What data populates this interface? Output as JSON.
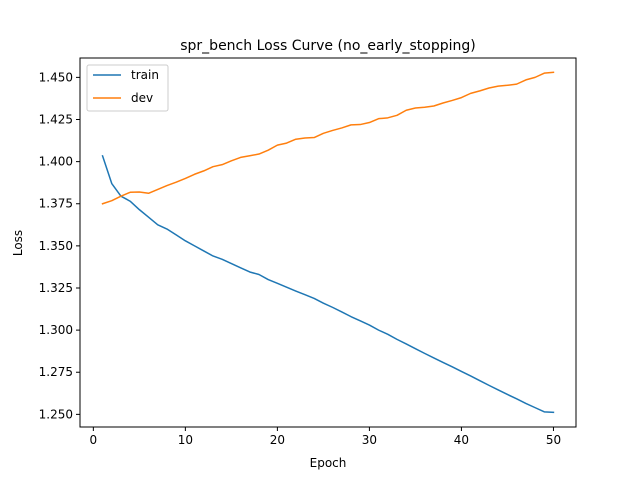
{
  "chart_data": {
    "type": "line",
    "title": "spr_bench Loss Curve (no_early_stopping)",
    "xlabel": "Epoch",
    "ylabel": "Loss",
    "xlim": [
      -1.45,
      52.45
    ],
    "ylim": [
      1.2425,
      1.4615
    ],
    "xticks": [
      0,
      10,
      20,
      30,
      40,
      50
    ],
    "xtick_labels": [
      "0",
      "10",
      "20",
      "30",
      "40",
      "50"
    ],
    "yticks": [
      1.25,
      1.275,
      1.3,
      1.325,
      1.35,
      1.375,
      1.4,
      1.425,
      1.45
    ],
    "ytick_labels": [
      "1.250",
      "1.275",
      "1.300",
      "1.325",
      "1.350",
      "1.375",
      "1.400",
      "1.425",
      "1.450"
    ],
    "grid": false,
    "legend_position": "upper-left",
    "x": [
      1,
      2,
      3,
      4,
      5,
      6,
      7,
      8,
      9,
      10,
      11,
      12,
      13,
      14,
      15,
      16,
      17,
      18,
      19,
      20,
      21,
      22,
      23,
      24,
      25,
      26,
      27,
      28,
      29,
      30,
      31,
      32,
      33,
      34,
      35,
      36,
      37,
      38,
      39,
      40,
      41,
      42,
      43,
      44,
      45,
      46,
      47,
      48,
      49,
      50
    ],
    "series": [
      {
        "name": "train",
        "color": "#1f77b4",
        "values": [
          1.4034,
          1.387,
          1.3795,
          1.3765,
          1.3715,
          1.367,
          1.3625,
          1.36,
          1.3565,
          1.353,
          1.35,
          1.347,
          1.344,
          1.342,
          1.3395,
          1.337,
          1.3345,
          1.333,
          1.33,
          1.3278,
          1.3255,
          1.3232,
          1.321,
          1.3188,
          1.316,
          1.3135,
          1.3108,
          1.308,
          1.3055,
          1.303,
          1.3,
          1.2975,
          1.2945,
          1.2918,
          1.289,
          1.2862,
          1.2835,
          1.2808,
          1.2782,
          1.2755,
          1.2728,
          1.27,
          1.2672,
          1.2645,
          1.2618,
          1.2592,
          1.2565,
          1.254,
          1.2515,
          1.2512
        ]
      },
      {
        "name": "dev",
        "color": "#ff7f0e",
        "values": [
          1.375,
          1.3768,
          1.3795,
          1.3818,
          1.382,
          1.3812,
          1.3835,
          1.3858,
          1.3878,
          1.39,
          1.3925,
          1.3945,
          1.397,
          1.3982,
          1.4005,
          1.4025,
          1.4035,
          1.4045,
          1.4068,
          1.4098,
          1.411,
          1.4133,
          1.414,
          1.4143,
          1.4168,
          1.4185,
          1.42,
          1.4218,
          1.422,
          1.4232,
          1.4255,
          1.426,
          1.4275,
          1.4305,
          1.4318,
          1.4323,
          1.433,
          1.4348,
          1.4363,
          1.438,
          1.4405,
          1.442,
          1.4437,
          1.4448,
          1.4453,
          1.446,
          1.4485,
          1.45,
          1.4525,
          1.453
        ]
      }
    ]
  }
}
